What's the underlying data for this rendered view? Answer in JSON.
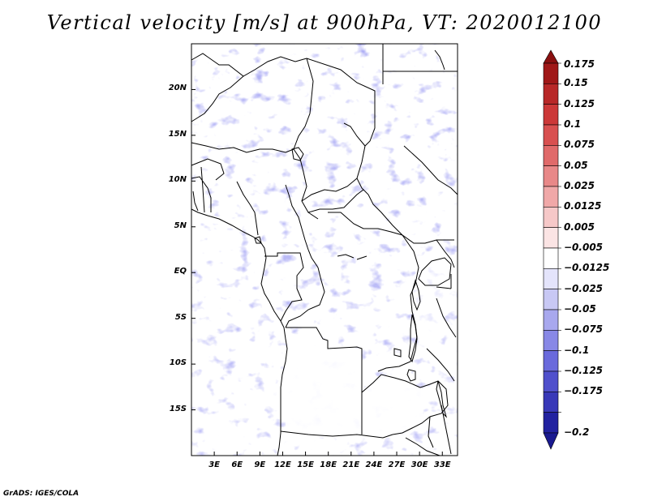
{
  "title": "Vertical velocity [m/s] at 900hPa, VT: 2020012100",
  "credit": "GrADS: IGES/COLA",
  "map": {
    "lon_range": [
      0,
      35
    ],
    "lat_range": [
      -20,
      25
    ],
    "lat_ticks": [
      {
        "value": 20,
        "label": "20N"
      },
      {
        "value": 15,
        "label": "15N"
      },
      {
        "value": 10,
        "label": "10N"
      },
      {
        "value": 5,
        "label": "5N"
      },
      {
        "value": 0,
        "label": "EQ"
      },
      {
        "value": -5,
        "label": "5S"
      },
      {
        "value": -10,
        "label": "10S"
      },
      {
        "value": -15,
        "label": "15S"
      }
    ],
    "lon_ticks": [
      {
        "value": 3,
        "label": "3E"
      },
      {
        "value": 6,
        "label": "6E"
      },
      {
        "value": 9,
        "label": "9E"
      },
      {
        "value": 12,
        "label": "12E"
      },
      {
        "value": 15,
        "label": "15E"
      },
      {
        "value": 18,
        "label": "18E"
      },
      {
        "value": 21,
        "label": "21E"
      },
      {
        "value": 24,
        "label": "24E"
      },
      {
        "value": 27,
        "label": "27E"
      },
      {
        "value": 30,
        "label": "30E"
      },
      {
        "value": 33,
        "label": "33E"
      }
    ]
  },
  "colorbar": {
    "levels": [
      {
        "label": "0.175",
        "color": "#a01818"
      },
      {
        "label": "0.15",
        "color": "#b82828"
      },
      {
        "label": "0.125",
        "color": "#cc3838"
      },
      {
        "label": "0.1",
        "color": "#d85050"
      },
      {
        "label": "0.075",
        "color": "#e06a6a"
      },
      {
        "label": "0.05",
        "color": "#e88888"
      },
      {
        "label": "0.025",
        "color": "#f0a8a8"
      },
      {
        "label": "0.0125",
        "color": "#f6c8c8"
      },
      {
        "label": "0.005",
        "color": "#fbe4e4"
      },
      {
        "label": "−0.005",
        "color": "#ffffff"
      },
      {
        "label": "−0.0125",
        "color": "#e4e4fb"
      },
      {
        "label": "−0.025",
        "color": "#c8c8f4"
      },
      {
        "label": "−0.05",
        "color": "#a8a8ee"
      },
      {
        "label": "−0.075",
        "color": "#8888e6"
      },
      {
        "label": "−0.1",
        "color": "#6a6adc"
      },
      {
        "label": "−0.125",
        "color": "#5050cc"
      },
      {
        "label": "−0.175",
        "color": "#3838b8"
      },
      {
        "label": "−0.2",
        "color": "#2222a0"
      }
    ],
    "top_arrow_color": "#8a1010",
    "bottom_arrow_color": "#1a1a90"
  }
}
